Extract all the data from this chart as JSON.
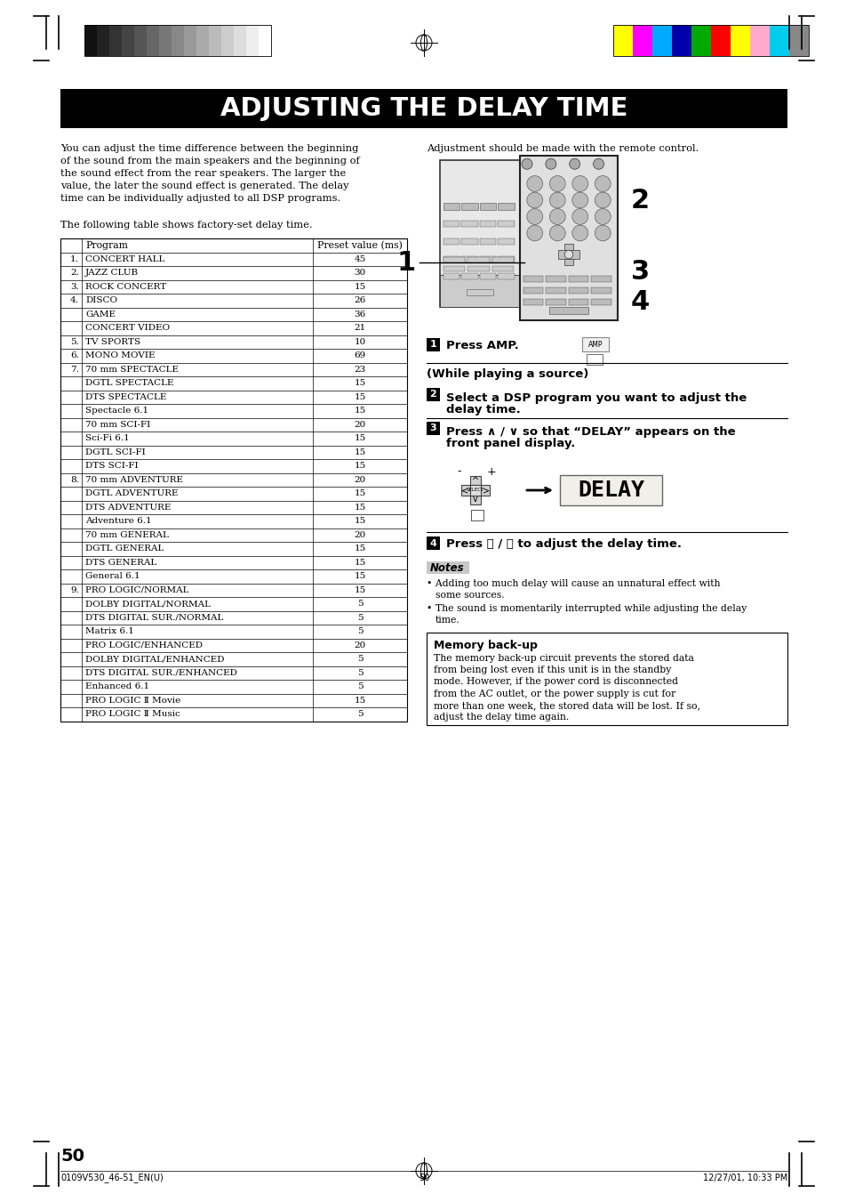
{
  "title": "ADJUSTING THE DELAY TIME",
  "page_number": "50",
  "footer_left": "0109V530_46-51_EN(U)",
  "footer_center": "50",
  "footer_right": "12/27/01, 10:33 PM",
  "left_body_text": "You can adjust the time difference between the beginning\nof the sound from the main speakers and the beginning of\nthe sound effect from the rear speakers. The larger the\nvalue, the later the sound effect is generated. The delay\ntime can be individually adjusted to all DSP programs.",
  "table_intro": "The following table shows factory-set delay time.",
  "table_header": [
    "Program",
    "Preset value (ms)"
  ],
  "table_rows": [
    [
      "1.",
      "CONCERT HALL",
      "45"
    ],
    [
      "2.",
      "JAZZ CLUB",
      "30"
    ],
    [
      "3.",
      "ROCK CONCERT",
      "15"
    ],
    [
      "4.",
      "DISCO",
      "26"
    ],
    [
      "",
      "GAME",
      "36"
    ],
    [
      "",
      "CONCERT VIDEO",
      "21"
    ],
    [
      "5.",
      "TV SPORTS",
      "10"
    ],
    [
      "6.",
      "MONO MOVIE",
      "69"
    ],
    [
      "7.",
      "70 mm SPECTACLE",
      "23"
    ],
    [
      "",
      "DGTL SPECTACLE",
      "15"
    ],
    [
      "",
      "DTS SPECTACLE",
      "15"
    ],
    [
      "",
      "Spectacle 6.1",
      "15"
    ],
    [
      "",
      "70 mm SCI-FI",
      "20"
    ],
    [
      "",
      "Sci-Fi 6.1",
      "15"
    ],
    [
      "",
      "DGTL SCI-FI",
      "15"
    ],
    [
      "",
      "DTS SCI-FI",
      "15"
    ],
    [
      "8.",
      "70 mm ADVENTURE",
      "20"
    ],
    [
      "",
      "DGTL ADVENTURE",
      "15"
    ],
    [
      "",
      "DTS ADVENTURE",
      "15"
    ],
    [
      "",
      "Adventure 6.1",
      "15"
    ],
    [
      "",
      "70 mm GENERAL",
      "20"
    ],
    [
      "",
      "DGTL GENERAL",
      "15"
    ],
    [
      "",
      "DTS GENERAL",
      "15"
    ],
    [
      "",
      "General 6.1",
      "15"
    ],
    [
      "9.",
      "PRO LOGIC/NORMAL",
      "15"
    ],
    [
      "",
      "DOLBY DIGITAL/NORMAL",
      "5"
    ],
    [
      "",
      "DTS DIGITAL SUR./NORMAL",
      "5"
    ],
    [
      "",
      "Matrix 6.1",
      "5"
    ],
    [
      "",
      "PRO LOGIC/ENHANCED",
      "20"
    ],
    [
      "",
      "DOLBY DIGITAL/ENHANCED",
      "5"
    ],
    [
      "",
      "DTS DIGITAL SUR./ENHANCED",
      "5"
    ],
    [
      "",
      "Enhanced 6.1",
      "5"
    ],
    [
      "",
      "PRO LOGIC Ⅱ Movie",
      "15"
    ],
    [
      "",
      "PRO LOGIC Ⅱ Music",
      "5"
    ]
  ],
  "right_col_text1": "Adjustment should be made with the remote control.",
  "step1_label": "1",
  "step1_bold": "Press AMP.",
  "step1_sub": "(While playing a source)",
  "step2_label": "2",
  "step2_bold": "Select a DSP program you want to adjust the\ndelay time.",
  "step3_label": "3",
  "step3_bold": "Press ∧ / ∨ so that “DELAY” appears on the\nfront panel display.",
  "step4_label": "4",
  "step4_bold": "Press 〈 / 〉 to adjust the delay time.",
  "notes_title": "Notes",
  "notes_line1": "Adding too much delay will cause an unnatural effect with",
  "notes_line1b": "some sources.",
  "notes_line2": "The sound is momentarily interrupted while adjusting the delay",
  "notes_line2b": "time.",
  "memory_title": "Memory back-up",
  "memory_text_lines": [
    "The memory back-up circuit prevents the stored data",
    "from being lost even if this unit is in the standby",
    "mode. However, if the power cord is disconnected",
    "from the AC outlet, or the power supply is cut for",
    "more than one week, the stored data will be lost. If so,",
    "adjust the delay time again."
  ],
  "bg_color": "#ffffff",
  "title_bg": "#000000",
  "title_fg": "#ffffff",
  "notes_bg": "#c8c8c8",
  "header_bar_colors_left": [
    "#111111",
    "#222222",
    "#333333",
    "#444444",
    "#555555",
    "#666666",
    "#777777",
    "#888888",
    "#999999",
    "#aaaaaa",
    "#bbbbbb",
    "#cccccc",
    "#dddddd",
    "#eeeeee",
    "#ffffff"
  ],
  "header_bar_colors_right": [
    "#ffff00",
    "#ff00ff",
    "#00aaff",
    "#0000aa",
    "#00aa00",
    "#ff0000",
    "#ffff00",
    "#ffaacc",
    "#00ccee",
    "#888888"
  ]
}
